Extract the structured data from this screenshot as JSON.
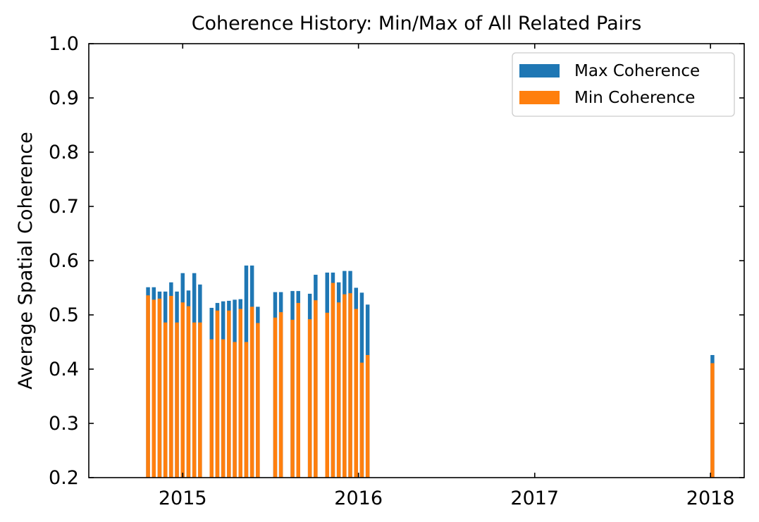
{
  "chart_data": {
    "type": "bar",
    "title": "Coherence History: Min/Max of All Related Pairs",
    "xlabel": "",
    "ylabel": "Average Spatial Coherence",
    "xlim": [
      "2014-06-20",
      "2018-03-12"
    ],
    "ylim": [
      0.2,
      1.0
    ],
    "yticks": [
      "0.2",
      "0.3",
      "0.4",
      "0.5",
      "0.6",
      "0.7",
      "0.8",
      "0.9",
      "1.0"
    ],
    "xticks": [
      {
        "date": "2015-01-01",
        "label": "2015"
      },
      {
        "date": "2016-01-01",
        "label": "2016"
      },
      {
        "date": "2017-01-01",
        "label": "2017"
      },
      {
        "date": "2018-01-01",
        "label": "2018"
      }
    ],
    "legend_position": "top-right",
    "grid": false,
    "series": [
      {
        "name": "Max Coherence",
        "color": "#1f77b4",
        "x": [
          "2014-10-21",
          "2014-11-02",
          "2014-11-14",
          "2014-11-26",
          "2014-12-08",
          "2014-12-20",
          "2015-01-01",
          "2015-01-13",
          "2015-01-25",
          "2015-02-06",
          "2015-03-02",
          "2015-03-14",
          "2015-03-26",
          "2015-04-07",
          "2015-04-19",
          "2015-05-01",
          "2015-05-13",
          "2015-05-25",
          "2015-06-06",
          "2015-07-12",
          "2015-07-24",
          "2015-08-17",
          "2015-08-29",
          "2015-09-22",
          "2015-10-04",
          "2015-10-28",
          "2015-11-09",
          "2015-11-21",
          "2015-12-03",
          "2015-12-15",
          "2015-12-27",
          "2016-01-08",
          "2016-01-20",
          "2018-01-05"
        ],
        "values": [
          0.551,
          0.551,
          0.543,
          0.543,
          0.56,
          0.543,
          0.577,
          0.545,
          0.577,
          0.556,
          0.513,
          0.522,
          0.525,
          0.526,
          0.528,
          0.529,
          0.591,
          0.591,
          0.515,
          0.542,
          0.542,
          0.544,
          0.544,
          0.539,
          0.574,
          0.578,
          0.578,
          0.56,
          0.581,
          0.581,
          0.55,
          0.541,
          0.519,
          0.426
        ]
      },
      {
        "name": "Min Coherence",
        "color": "#ff7f0e",
        "x": [
          "2014-10-21",
          "2014-11-02",
          "2014-11-14",
          "2014-11-26",
          "2014-12-08",
          "2014-12-20",
          "2015-01-01",
          "2015-01-13",
          "2015-01-25",
          "2015-02-06",
          "2015-03-02",
          "2015-03-14",
          "2015-03-26",
          "2015-04-07",
          "2015-04-19",
          "2015-05-01",
          "2015-05-13",
          "2015-05-25",
          "2015-06-06",
          "2015-07-12",
          "2015-07-24",
          "2015-08-17",
          "2015-08-29",
          "2015-09-22",
          "2015-10-04",
          "2015-10-28",
          "2015-11-09",
          "2015-11-21",
          "2015-12-03",
          "2015-12-15",
          "2015-12-27",
          "2016-01-08",
          "2016-01-20",
          "2018-01-05"
        ],
        "values": [
          0.536,
          0.528,
          0.53,
          0.486,
          0.535,
          0.486,
          0.523,
          0.516,
          0.486,
          0.486,
          0.455,
          0.508,
          0.455,
          0.508,
          0.45,
          0.511,
          0.45,
          0.515,
          0.485,
          0.495,
          0.505,
          0.491,
          0.522,
          0.492,
          0.527,
          0.504,
          0.559,
          0.523,
          0.538,
          0.54,
          0.511,
          0.412,
          0.426,
          0.411
        ]
      }
    ]
  }
}
